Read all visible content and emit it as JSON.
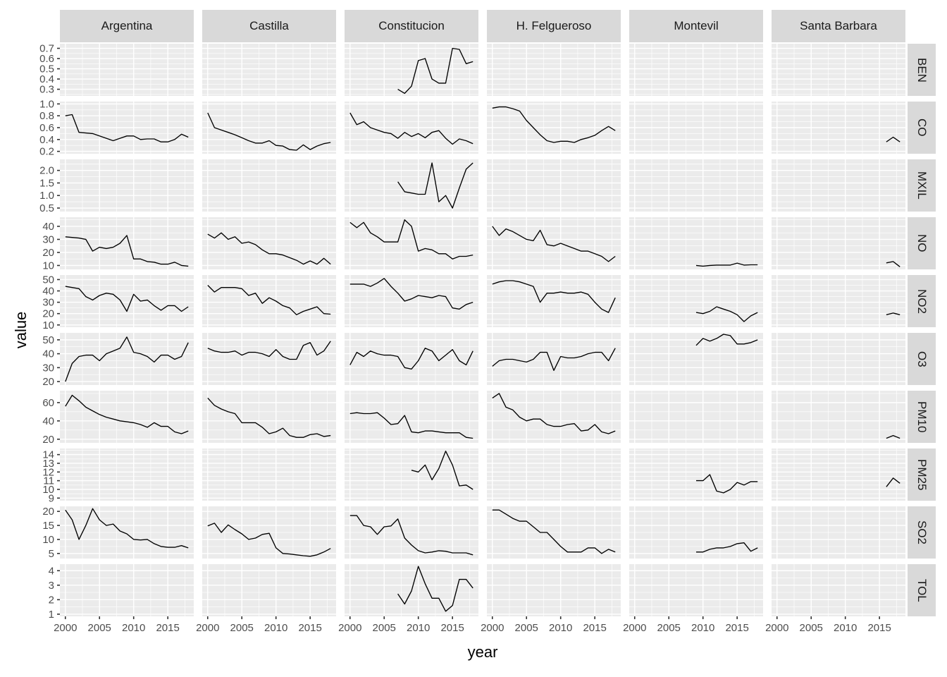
{
  "chart_data": {
    "type": "line",
    "x_label": "year",
    "y_label": "value",
    "x": {
      "range": [
        1999.2,
        2018.8
      ],
      "ticks": [
        2000,
        2005,
        2010,
        2015
      ],
      "tick_labels": [
        "2000",
        "2005",
        "2010",
        "2015"
      ]
    },
    "cols": [
      "Argentina",
      "Castilla",
      "Constitucion",
      "H. Felgueroso",
      "Montevil",
      "Santa Barbara"
    ],
    "rows": [
      {
        "label": "BEN",
        "ticks": [
          0.3,
          0.4,
          0.5,
          0.6,
          0.7
        ],
        "tick_labels": [
          "0.3",
          "0.4",
          "0.5",
          "0.6",
          "0.7"
        ],
        "range": [
          0.235,
          0.745
        ]
      },
      {
        "label": "CO",
        "ticks": [
          0.2,
          0.4,
          0.6,
          0.8,
          1.0
        ],
        "tick_labels": [
          "0.2",
          "0.4",
          "0.6",
          "0.8",
          "1.0"
        ],
        "range": [
          0.16,
          1.04
        ]
      },
      {
        "label": "MXIL",
        "ticks": [
          0.5,
          1.0,
          1.5,
          2.0
        ],
        "tick_labels": [
          "0.5",
          "1.0",
          "1.5",
          "2.0"
        ],
        "range": [
          0.36,
          2.44
        ]
      },
      {
        "label": "NO",
        "ticks": [
          10,
          20,
          30,
          40
        ],
        "tick_labels": [
          "10",
          "20",
          "30",
          "40"
        ],
        "range": [
          7,
          47
        ]
      },
      {
        "label": "NO2",
        "ticks": [
          10,
          20,
          30,
          40,
          50
        ],
        "tick_labels": [
          "10",
          "20",
          "30",
          "40",
          "50"
        ],
        "range": [
          8,
          54
        ]
      },
      {
        "label": "O3",
        "ticks": [
          20,
          30,
          40,
          50
        ],
        "tick_labels": [
          "20",
          "30",
          "40",
          "50"
        ],
        "range": [
          17.5,
          55
        ]
      },
      {
        "label": "PM10",
        "ticks": [
          20,
          40,
          60
        ],
        "tick_labels": [
          "20",
          "40",
          "60"
        ],
        "range": [
          16,
          73
        ]
      },
      {
        "label": "PM25",
        "ticks": [
          9,
          10,
          11,
          12,
          13,
          14
        ],
        "tick_labels": [
          "9",
          "10",
          "11",
          "12",
          "13",
          "14"
        ],
        "range": [
          8.7,
          14.7
        ]
      },
      {
        "label": "SO2",
        "ticks": [
          5,
          10,
          15,
          20
        ],
        "tick_labels": [
          "5",
          "10",
          "15",
          "20"
        ],
        "range": [
          3.2,
          21.8
        ]
      },
      {
        "label": "TOL",
        "ticks": [
          1,
          2,
          3,
          4
        ],
        "tick_labels": [
          "1",
          "2",
          "3",
          "4"
        ],
        "range": [
          0.85,
          4.45
        ]
      }
    ],
    "series": [
      {
        "row": "BEN",
        "col": "Constitucion",
        "start_year": 2007,
        "values": [
          0.3,
          0.26,
          0.33,
          0.58,
          0.6,
          0.4,
          0.36,
          0.36,
          0.7,
          0.69,
          0.55,
          0.57
        ]
      },
      {
        "row": "CO",
        "col": "Argentina",
        "start_year": 2000,
        "values": [
          0.8,
          0.82,
          0.52,
          0.51,
          0.5,
          0.46,
          0.42,
          0.38,
          0.42,
          0.46,
          0.46,
          0.4,
          0.41,
          0.41,
          0.36,
          0.36,
          0.4,
          0.49,
          0.44
        ]
      },
      {
        "row": "CO",
        "col": "Castilla",
        "start_year": 2000,
        "values": [
          0.85,
          0.6,
          0.56,
          0.52,
          0.48,
          0.43,
          0.38,
          0.34,
          0.34,
          0.38,
          0.3,
          0.29,
          0.23,
          0.22,
          0.31,
          0.23,
          0.29,
          0.33,
          0.35
        ]
      },
      {
        "row": "CO",
        "col": "Constitucion",
        "start_year": 2000,
        "values": [
          0.85,
          0.65,
          0.7,
          0.6,
          0.56,
          0.52,
          0.5,
          0.42,
          0.52,
          0.45,
          0.5,
          0.43,
          0.52,
          0.55,
          0.42,
          0.32,
          0.41,
          0.38,
          0.33
        ]
      },
      {
        "row": "CO",
        "col": "H. Felgueroso",
        "start_year": 2000,
        "values": [
          0.93,
          0.95,
          0.95,
          0.92,
          0.88,
          0.72,
          0.6,
          0.48,
          0.38,
          0.35,
          0.37,
          0.37,
          0.35,
          0.4,
          0.43,
          0.47,
          0.55,
          0.62,
          0.55
        ]
      },
      {
        "row": "CO",
        "col": "Santa Barbara",
        "start_year": 2016,
        "values": [
          0.36,
          0.44,
          0.36
        ]
      },
      {
        "row": "MXIL",
        "col": "Constitucion",
        "start_year": 2007,
        "values": [
          1.55,
          1.15,
          1.1,
          1.05,
          1.05,
          2.3,
          0.75,
          1.0,
          0.5,
          1.3,
          2.05,
          2.3
        ]
      },
      {
        "row": "NO",
        "col": "Argentina",
        "start_year": 2000,
        "values": [
          32,
          31.5,
          31,
          30,
          21,
          24,
          23,
          24,
          27,
          33,
          15,
          15,
          13,
          12.5,
          11,
          11,
          12.5,
          10,
          9.5
        ]
      },
      {
        "row": "NO",
        "col": "Castilla",
        "start_year": 2000,
        "values": [
          34,
          31,
          35,
          30,
          32,
          27,
          28,
          26,
          22,
          19,
          19,
          18,
          16,
          14,
          11,
          13.5,
          11,
          15.5,
          11
        ]
      },
      {
        "row": "NO",
        "col": "Constitucion",
        "start_year": 2000,
        "values": [
          43,
          39,
          43,
          35,
          32,
          28,
          28,
          28,
          45,
          40,
          21,
          23,
          22,
          19,
          19,
          15,
          17,
          17,
          18
        ]
      },
      {
        "row": "NO",
        "col": "H. Felgueroso",
        "start_year": 2000,
        "values": [
          40,
          33,
          38,
          36,
          33,
          30,
          29,
          37,
          26,
          25,
          27,
          25,
          23,
          21,
          21,
          19,
          17,
          13,
          17
        ]
      },
      {
        "row": "NO",
        "col": "Montevil",
        "start_year": 2009,
        "values": [
          10,
          9.5,
          10,
          10.3,
          10.3,
          10.3,
          11.8,
          10.3,
          10.5,
          10.5
        ]
      },
      {
        "row": "NO",
        "col": "Santa Barbara",
        "start_year": 2016,
        "values": [
          12,
          13,
          9
        ]
      },
      {
        "row": "NO2",
        "col": "Argentina",
        "start_year": 2000,
        "values": [
          44,
          43,
          42,
          35,
          32,
          36,
          38,
          37,
          32,
          22,
          37,
          31,
          32,
          27,
          23,
          27,
          27,
          22,
          26
        ]
      },
      {
        "row": "NO2",
        "col": "Castilla",
        "start_year": 2000,
        "values": [
          45,
          39,
          43,
          43,
          43,
          42,
          36,
          38,
          29,
          34,
          31,
          27,
          25,
          19,
          22,
          24,
          26,
          20,
          19.5
        ]
      },
      {
        "row": "NO2",
        "col": "Constitucion",
        "start_year": 2000,
        "values": [
          46,
          46,
          46,
          44,
          47,
          51,
          44,
          38,
          31,
          33,
          36,
          35,
          34,
          36,
          35,
          25,
          24,
          28,
          30
        ]
      },
      {
        "row": "NO2",
        "col": "H. Felgueroso",
        "start_year": 2000,
        "values": [
          46,
          48,
          49,
          49,
          48,
          46,
          44,
          30,
          38,
          38,
          39,
          38,
          38,
          39,
          37,
          30,
          24,
          21,
          34
        ]
      },
      {
        "row": "NO2",
        "col": "Montevil",
        "start_year": 2009,
        "values": [
          21,
          20,
          22,
          26,
          24,
          22,
          19,
          13,
          18,
          21
        ]
      },
      {
        "row": "NO2",
        "col": "Santa Barbara",
        "start_year": 2016,
        "values": [
          19,
          20.5,
          19
        ]
      },
      {
        "row": "O3",
        "col": "Argentina",
        "start_year": 2000,
        "values": [
          20,
          33,
          38,
          39,
          39,
          35,
          40,
          42,
          44,
          52,
          41,
          40,
          38,
          34,
          39,
          39,
          36,
          38,
          48
        ]
      },
      {
        "row": "O3",
        "col": "Castilla",
        "start_year": 2000,
        "values": [
          44,
          42,
          41,
          41,
          42,
          39,
          41,
          41,
          40,
          38,
          43,
          38,
          36,
          36,
          46,
          48,
          39,
          42,
          49
        ]
      },
      {
        "row": "O3",
        "col": "Constitucion",
        "start_year": 2000,
        "values": [
          32,
          41,
          38,
          42,
          40,
          39,
          39,
          38,
          30,
          29,
          35,
          44,
          42,
          35,
          39,
          43,
          35,
          32,
          42
        ]
      },
      {
        "row": "O3",
        "col": "H. Felgueroso",
        "start_year": 2000,
        "values": [
          31,
          35,
          36,
          36,
          35,
          34,
          36,
          41,
          41,
          28,
          38,
          37,
          37,
          38,
          40,
          41,
          41,
          35,
          44
        ]
      },
      {
        "row": "O3",
        "col": "Montevil",
        "start_year": 2009,
        "values": [
          46,
          51,
          49,
          51,
          54,
          53,
          47,
          47,
          48,
          50
        ]
      },
      {
        "row": "PM10",
        "col": "Argentina",
        "start_year": 2000,
        "values": [
          56,
          68,
          62,
          55,
          51,
          47,
          44,
          42,
          40,
          39,
          38,
          36,
          33,
          38,
          34,
          34,
          28,
          26,
          29
        ]
      },
      {
        "row": "PM10",
        "col": "Castilla",
        "start_year": 2000,
        "values": [
          65,
          57,
          53,
          50,
          48,
          38,
          38,
          38,
          33,
          26,
          28,
          32,
          24,
          22,
          22,
          25,
          26,
          23,
          24
        ]
      },
      {
        "row": "PM10",
        "col": "Constitucion",
        "start_year": 2000,
        "values": [
          48,
          49,
          48,
          48,
          49,
          43,
          36,
          37,
          46,
          28,
          27,
          29,
          29,
          28,
          27,
          27,
          27,
          22,
          21
        ]
      },
      {
        "row": "PM10",
        "col": "H. Felgueroso",
        "start_year": 2000,
        "values": [
          65,
          70,
          55,
          52,
          44,
          40,
          42,
          42,
          36,
          34,
          34,
          36,
          37,
          29,
          30,
          36,
          28,
          26,
          29
        ]
      },
      {
        "row": "PM10",
        "col": "Santa Barbara",
        "start_year": 2016,
        "values": [
          21,
          24,
          21
        ]
      },
      {
        "row": "PM25",
        "col": "Constitucion",
        "start_year": 2009,
        "values": [
          12.2,
          12.0,
          12.8,
          11.1,
          12.4,
          14.4,
          12.8,
          10.4,
          10.5,
          10.0
        ]
      },
      {
        "row": "PM25",
        "col": "Montevil",
        "start_year": 2009,
        "values": [
          11.0,
          11.0,
          11.7,
          9.8,
          9.6,
          10.0,
          10.8,
          10.5,
          10.9,
          10.9
        ]
      },
      {
        "row": "PM25",
        "col": "Santa Barbara",
        "start_year": 2016,
        "values": [
          10.3,
          11.3,
          10.7
        ]
      },
      {
        "row": "SO2",
        "col": "Argentina",
        "start_year": 2000,
        "values": [
          20.5,
          17,
          10,
          15,
          21,
          17,
          15,
          15.5,
          13,
          12,
          10,
          9.8,
          10,
          8.5,
          7.5,
          7.2,
          7.2,
          7.8,
          7.0
        ]
      },
      {
        "row": "SO2",
        "col": "Castilla",
        "start_year": 2000,
        "values": [
          14.8,
          15.8,
          12.5,
          15.2,
          13.5,
          12,
          10,
          10.5,
          11.8,
          12.2,
          7,
          5,
          4.8,
          4.5,
          4.2,
          4,
          4.5,
          5.5,
          6.8
        ]
      },
      {
        "row": "SO2",
        "col": "Constitucion",
        "start_year": 2000,
        "values": [
          18.5,
          18.5,
          15,
          14.5,
          11.8,
          14.5,
          14.8,
          17.3,
          10.5,
          8,
          6,
          5.2,
          5.5,
          6,
          5.8,
          5.2,
          5.2,
          5.2,
          4.5
        ]
      },
      {
        "row": "SO2",
        "col": "H. Felgueroso",
        "start_year": 2000,
        "values": [
          20.5,
          20.5,
          19,
          17.5,
          16.5,
          16.5,
          14.5,
          12.5,
          12.5,
          10,
          7.5,
          5.5,
          5.5,
          5.5,
          7,
          7,
          5,
          6.5,
          5.5
        ]
      },
      {
        "row": "SO2",
        "col": "Montevil",
        "start_year": 2009,
        "values": [
          5.5,
          5.5,
          6.5,
          7,
          7,
          7.5,
          8.5,
          8.8,
          5.8,
          7
        ]
      },
      {
        "row": "TOL",
        "col": "Constitucion",
        "start_year": 2007,
        "values": [
          2.4,
          1.7,
          2.6,
          4.3,
          3.1,
          2.1,
          2.1,
          1.2,
          1.6,
          3.4,
          3.4,
          2.8
        ]
      }
    ],
    "style": {
      "panel_bg": "#EBEBEB",
      "strip_bg": "#D9D9D9",
      "grid_major": "#FFFFFF",
      "grid_minor": "#FFFFFF",
      "line_color": "#000000",
      "tick_mark": "#333333",
      "tick_text": "#4D4D4D",
      "title_text": "#000000"
    }
  }
}
